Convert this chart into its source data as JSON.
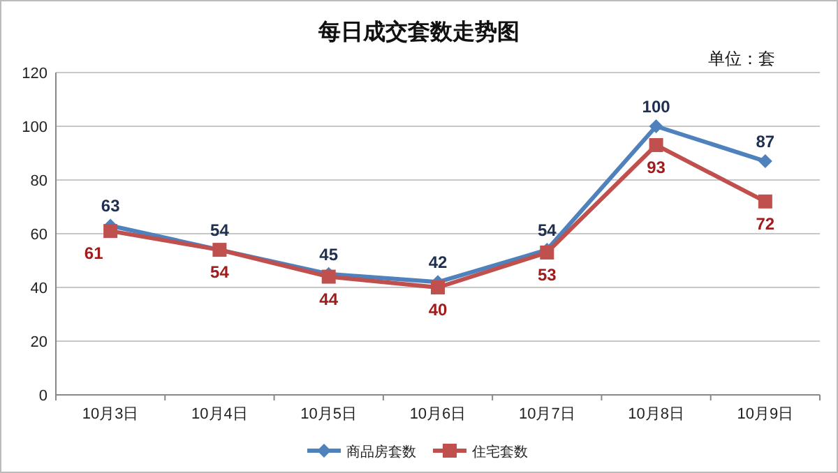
{
  "chart_data": {
    "type": "line",
    "title": "每日成交套数走势图",
    "annotations": [
      "单位：套"
    ],
    "categories": [
      "10月3日",
      "10月4日",
      "10月5日",
      "10月6日",
      "10月7日",
      "10月8日",
      "10月9日"
    ],
    "series": [
      {
        "name": "商品房套数",
        "color": "#4f81bd",
        "marker": "diamond",
        "values": [
          63,
          54,
          45,
          42,
          54,
          100,
          87
        ]
      },
      {
        "name": "住宅套数",
        "color": "#c0504d",
        "marker": "square",
        "values": [
          61,
          54,
          44,
          40,
          53,
          93,
          72
        ]
      }
    ],
    "ylim": [
      0,
      120
    ],
    "yticks": [
      0,
      20,
      40,
      60,
      80,
      100,
      120
    ],
    "grid": "y",
    "legend": "bottom",
    "data_labels": true
  }
}
